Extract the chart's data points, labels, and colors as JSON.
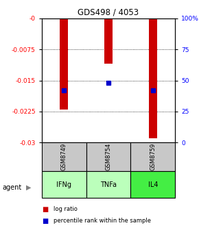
{
  "title": "GDS498 / 4053",
  "samples": [
    "GSM8749",
    "GSM8754",
    "GSM8759"
  ],
  "agents": [
    "IFNg",
    "TNFa",
    "IL4"
  ],
  "log_ratios": [
    -0.022,
    -0.011,
    -0.029
  ],
  "percentile_ranks": [
    42,
    48,
    42
  ],
  "ymin": -0.03,
  "ymax": 0.0,
  "yticks_left": [
    0,
    -0.0075,
    -0.015,
    -0.0225,
    -0.03
  ],
  "ytick_labels_left": [
    "-0",
    "-0.0075",
    "-0.015",
    "-0.0225",
    "-0.03"
  ],
  "yticks_right_vals": [
    0,
    25,
    50,
    75,
    100
  ],
  "ytick_labels_right": [
    "0",
    "25",
    "50",
    "75",
    "100%"
  ],
  "bar_color": "#cc0000",
  "point_color": "#0000cc",
  "sample_box_color": "#c8c8c8",
  "agent_colors": [
    "#bbffbb",
    "#bbffbb",
    "#44ee44"
  ],
  "legend_log_ratio": "log ratio",
  "legend_percentile": "percentile rank within the sample",
  "agent_label": "agent",
  "background_color": "#ffffff",
  "bar_width": 0.18
}
